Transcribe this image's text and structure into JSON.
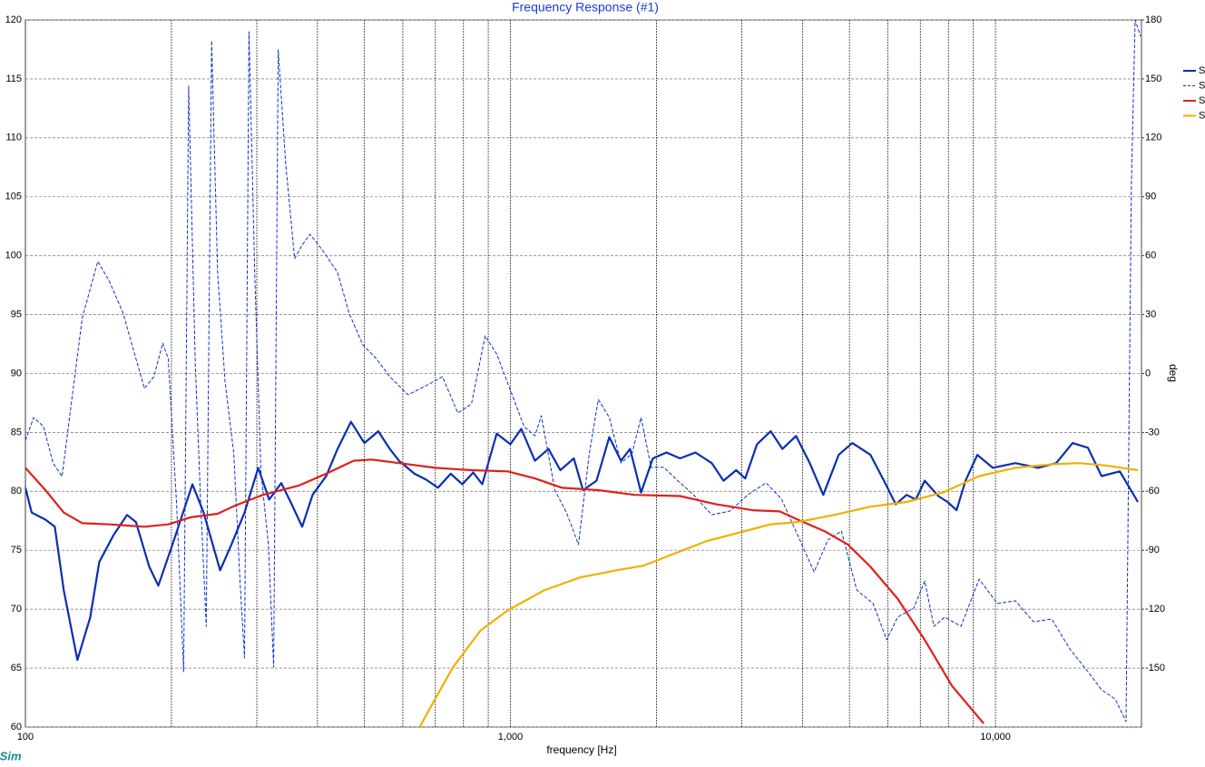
{
  "chart_data": {
    "type": "line",
    "title": "Frequency Response (#1)",
    "x_label": "frequency [Hz]",
    "y2_label": "deg",
    "brand": "XSim",
    "log_x": true,
    "grid": true,
    "xlim": [
      100,
      20000
    ],
    "xticks": [
      {
        "value": 100,
        "label": "100"
      },
      {
        "value": 1000,
        "label": "1,000"
      },
      {
        "value": 10000,
        "label": "10,000"
      }
    ],
    "x_minor_grid": [
      200,
      300,
      400,
      500,
      600,
      700,
      800,
      900,
      2000,
      3000,
      4000,
      5000,
      6000,
      7000,
      8000,
      9000
    ],
    "ylim": [
      60,
      120
    ],
    "yticks": [
      60,
      65,
      70,
      75,
      80,
      85,
      90,
      95,
      100,
      105,
      110,
      115,
      120
    ],
    "y2lim": [
      -180,
      180
    ],
    "y2ticks": [
      -150,
      -120,
      -90,
      -60,
      -30,
      0,
      30,
      60,
      90,
      120,
      150,
      180
    ],
    "legend": "right",
    "series": [
      {
        "name": "S",
        "color": "#0a2fb0",
        "style": "solid",
        "x": [
          100,
          103,
          110,
          115,
          120,
          128,
          136,
          142,
          152,
          162,
          169,
          180,
          188,
          201,
          221,
          233,
          252,
          266,
          283,
          302,
          318,
          337,
          354,
          372,
          391,
          417,
          440,
          469,
          500,
          534,
          564,
          589,
          634,
          670,
          709,
          753,
          796,
          838,
          875,
          937,
          1000,
          1053,
          1123,
          1198,
          1267,
          1351,
          1411,
          1505,
          1599,
          1690,
          1765,
          1859,
          1966,
          2097,
          2237,
          2406,
          2600,
          2750,
          2920,
          3049,
          3224,
          3440,
          3637,
          3880,
          4140,
          4416,
          4750,
          5067,
          5524,
          5891,
          6230,
          6561,
          6847,
          7148,
          7623,
          7962,
          8313,
          8677,
          9175,
          9872,
          10990,
          12240,
          13340,
          14420,
          15510,
          16550,
          18040,
          19660
        ],
        "values": [
          80.3,
          78.2,
          77.6,
          77,
          71.6,
          65.7,
          69.3,
          74,
          76.3,
          78,
          77.4,
          73.6,
          72,
          75.5,
          80.6,
          78.2,
          73.3,
          75.5,
          78.2,
          82,
          79.3,
          80.7,
          78.9,
          77,
          79.7,
          81.3,
          83.6,
          85.9,
          84.1,
          85.1,
          83.6,
          82.6,
          81.5,
          81,
          80.3,
          81.5,
          80.6,
          81.6,
          80.6,
          84.9,
          84,
          85.3,
          82.6,
          83.6,
          81.8,
          82.8,
          80.1,
          80.9,
          84.6,
          82.6,
          83.6,
          79.9,
          82.8,
          83.3,
          82.8,
          83.3,
          82.4,
          80.9,
          81.8,
          81.1,
          84,
          85.1,
          83.6,
          84.7,
          82.4,
          79.7,
          83.1,
          84.1,
          83.1,
          80.9,
          78.9,
          79.7,
          79.3,
          80.9,
          79.6,
          79.1,
          78.4,
          80.9,
          83.1,
          82,
          82.4,
          82,
          82.4,
          84.1,
          83.7,
          81.3,
          81.7,
          79.1
        ]
      },
      {
        "name": "S",
        "color": "#1030c8",
        "style": "dashed",
        "axis": "y2",
        "x": [
          100,
          104,
          109,
          114,
          119,
          124,
          131,
          141,
          149,
          159,
          169,
          176,
          184,
          192,
          197,
          205,
          212,
          217,
          224,
          230,
          236,
          242,
          249,
          258,
          269,
          277,
          283,
          289,
          297,
          306,
          317,
          325,
          332,
          344,
          359,
          372,
          386,
          409,
          440,
          465,
          496,
          529,
          564,
          615,
          670,
          724,
          779,
          831,
          887,
          937,
          1000,
          1067,
          1123,
          1158,
          1235,
          1306,
          1381,
          1454,
          1518,
          1599,
          1690,
          1780,
          1859,
          1949,
          2070,
          2218,
          2385,
          2600,
          2835,
          3088,
          3366,
          3622,
          3913,
          4228,
          4511,
          4812,
          5176,
          5594,
          5967,
          6282,
          6787,
          7148,
          7463,
          7859,
          8492,
          9256,
          10090,
          10990,
          11980,
          13060,
          14230,
          15510,
          16550,
          17650,
          18590,
          19070,
          19410,
          19910
        ],
        "values": [
          -34,
          -22.4,
          -27,
          -45.5,
          -52.4,
          -17.8,
          28.4,
          57.1,
          46.9,
          30.7,
          7.6,
          -7.6,
          -1.6,
          15.5,
          7.6,
          -66.3,
          -151.8,
          146.3,
          5.3,
          -68.6,
          -128.7,
          169.4,
          51.5,
          -3.9,
          -40.9,
          -105.6,
          -144.9,
          174,
          51.5,
          -50.1,
          -87.1,
          -149.5,
          164.8,
          107,
          58.5,
          65.4,
          70.9,
          63.1,
          51.5,
          30.7,
          14.6,
          7.6,
          -1.6,
          -10.8,
          -6.2,
          -1.6,
          -20.1,
          -15.5,
          19.2,
          9.9,
          -8.5,
          -27,
          -31.7,
          -21.5,
          -59.4,
          -71,
          -87.1,
          -40.9,
          -13.2,
          -22.4,
          -45.5,
          -40.9,
          -22.4,
          -47.8,
          -47.8,
          -54.8,
          -61.7,
          -71.9,
          -70,
          -61.7,
          -55.7,
          -63.9,
          -82.5,
          -101,
          -84.8,
          -80.2,
          -110.2,
          -117.1,
          -135.6,
          -124.1,
          -119.4,
          -105.6,
          -128.7,
          -124.1,
          -128.7,
          -104.7,
          -117.1,
          -115.7,
          -126.4,
          -125,
          -140.2,
          -151.8,
          -161,
          -165.7,
          -177.2,
          97.7,
          180,
          171.7
        ]
      },
      {
        "name": "S",
        "color": "#e0201a",
        "style": "solid",
        "x": [
          100,
          110,
          120,
          131,
          149,
          176,
          197,
          219,
          249,
          271,
          309,
          367,
          417,
          475,
          518,
          589,
          700,
          831,
          987,
          1123,
          1278,
          1518,
          1804,
          2237,
          2657,
          3156,
          3591,
          3913,
          4452,
          4959,
          5524,
          6282,
          7148,
          8134,
          9456
        ],
        "values": [
          82,
          80.1,
          78.2,
          77.3,
          77.2,
          77,
          77.2,
          77.8,
          78.1,
          78.8,
          79.7,
          80.5,
          81.5,
          82.6,
          82.7,
          82.4,
          82,
          81.8,
          81.7,
          81.1,
          80.3,
          80.1,
          79.7,
          79.6,
          78.9,
          78.4,
          78.3,
          77.6,
          76.6,
          75.5,
          73.6,
          70.9,
          67.4,
          63.5,
          60.3
        ]
      },
      {
        "name": "S",
        "color": "#f0b000",
        "style": "solid",
        "x": [
          650,
          700,
          762,
          868,
          987,
          1173,
          1393,
          1655,
          1883,
          2141,
          2545,
          3023,
          3440,
          3913,
          4648,
          5524,
          6561,
          7793,
          9256,
          10990,
          13060,
          14860,
          16900,
          19660
        ],
        "values": [
          60,
          62.4,
          65.1,
          68.2,
          69.9,
          71.6,
          72.7,
          73.3,
          73.7,
          74.6,
          75.8,
          76.6,
          77.2,
          77.4,
          78,
          78.7,
          79.1,
          79.9,
          81.3,
          82,
          82.3,
          82.4,
          82.2,
          81.8
        ]
      }
    ]
  }
}
